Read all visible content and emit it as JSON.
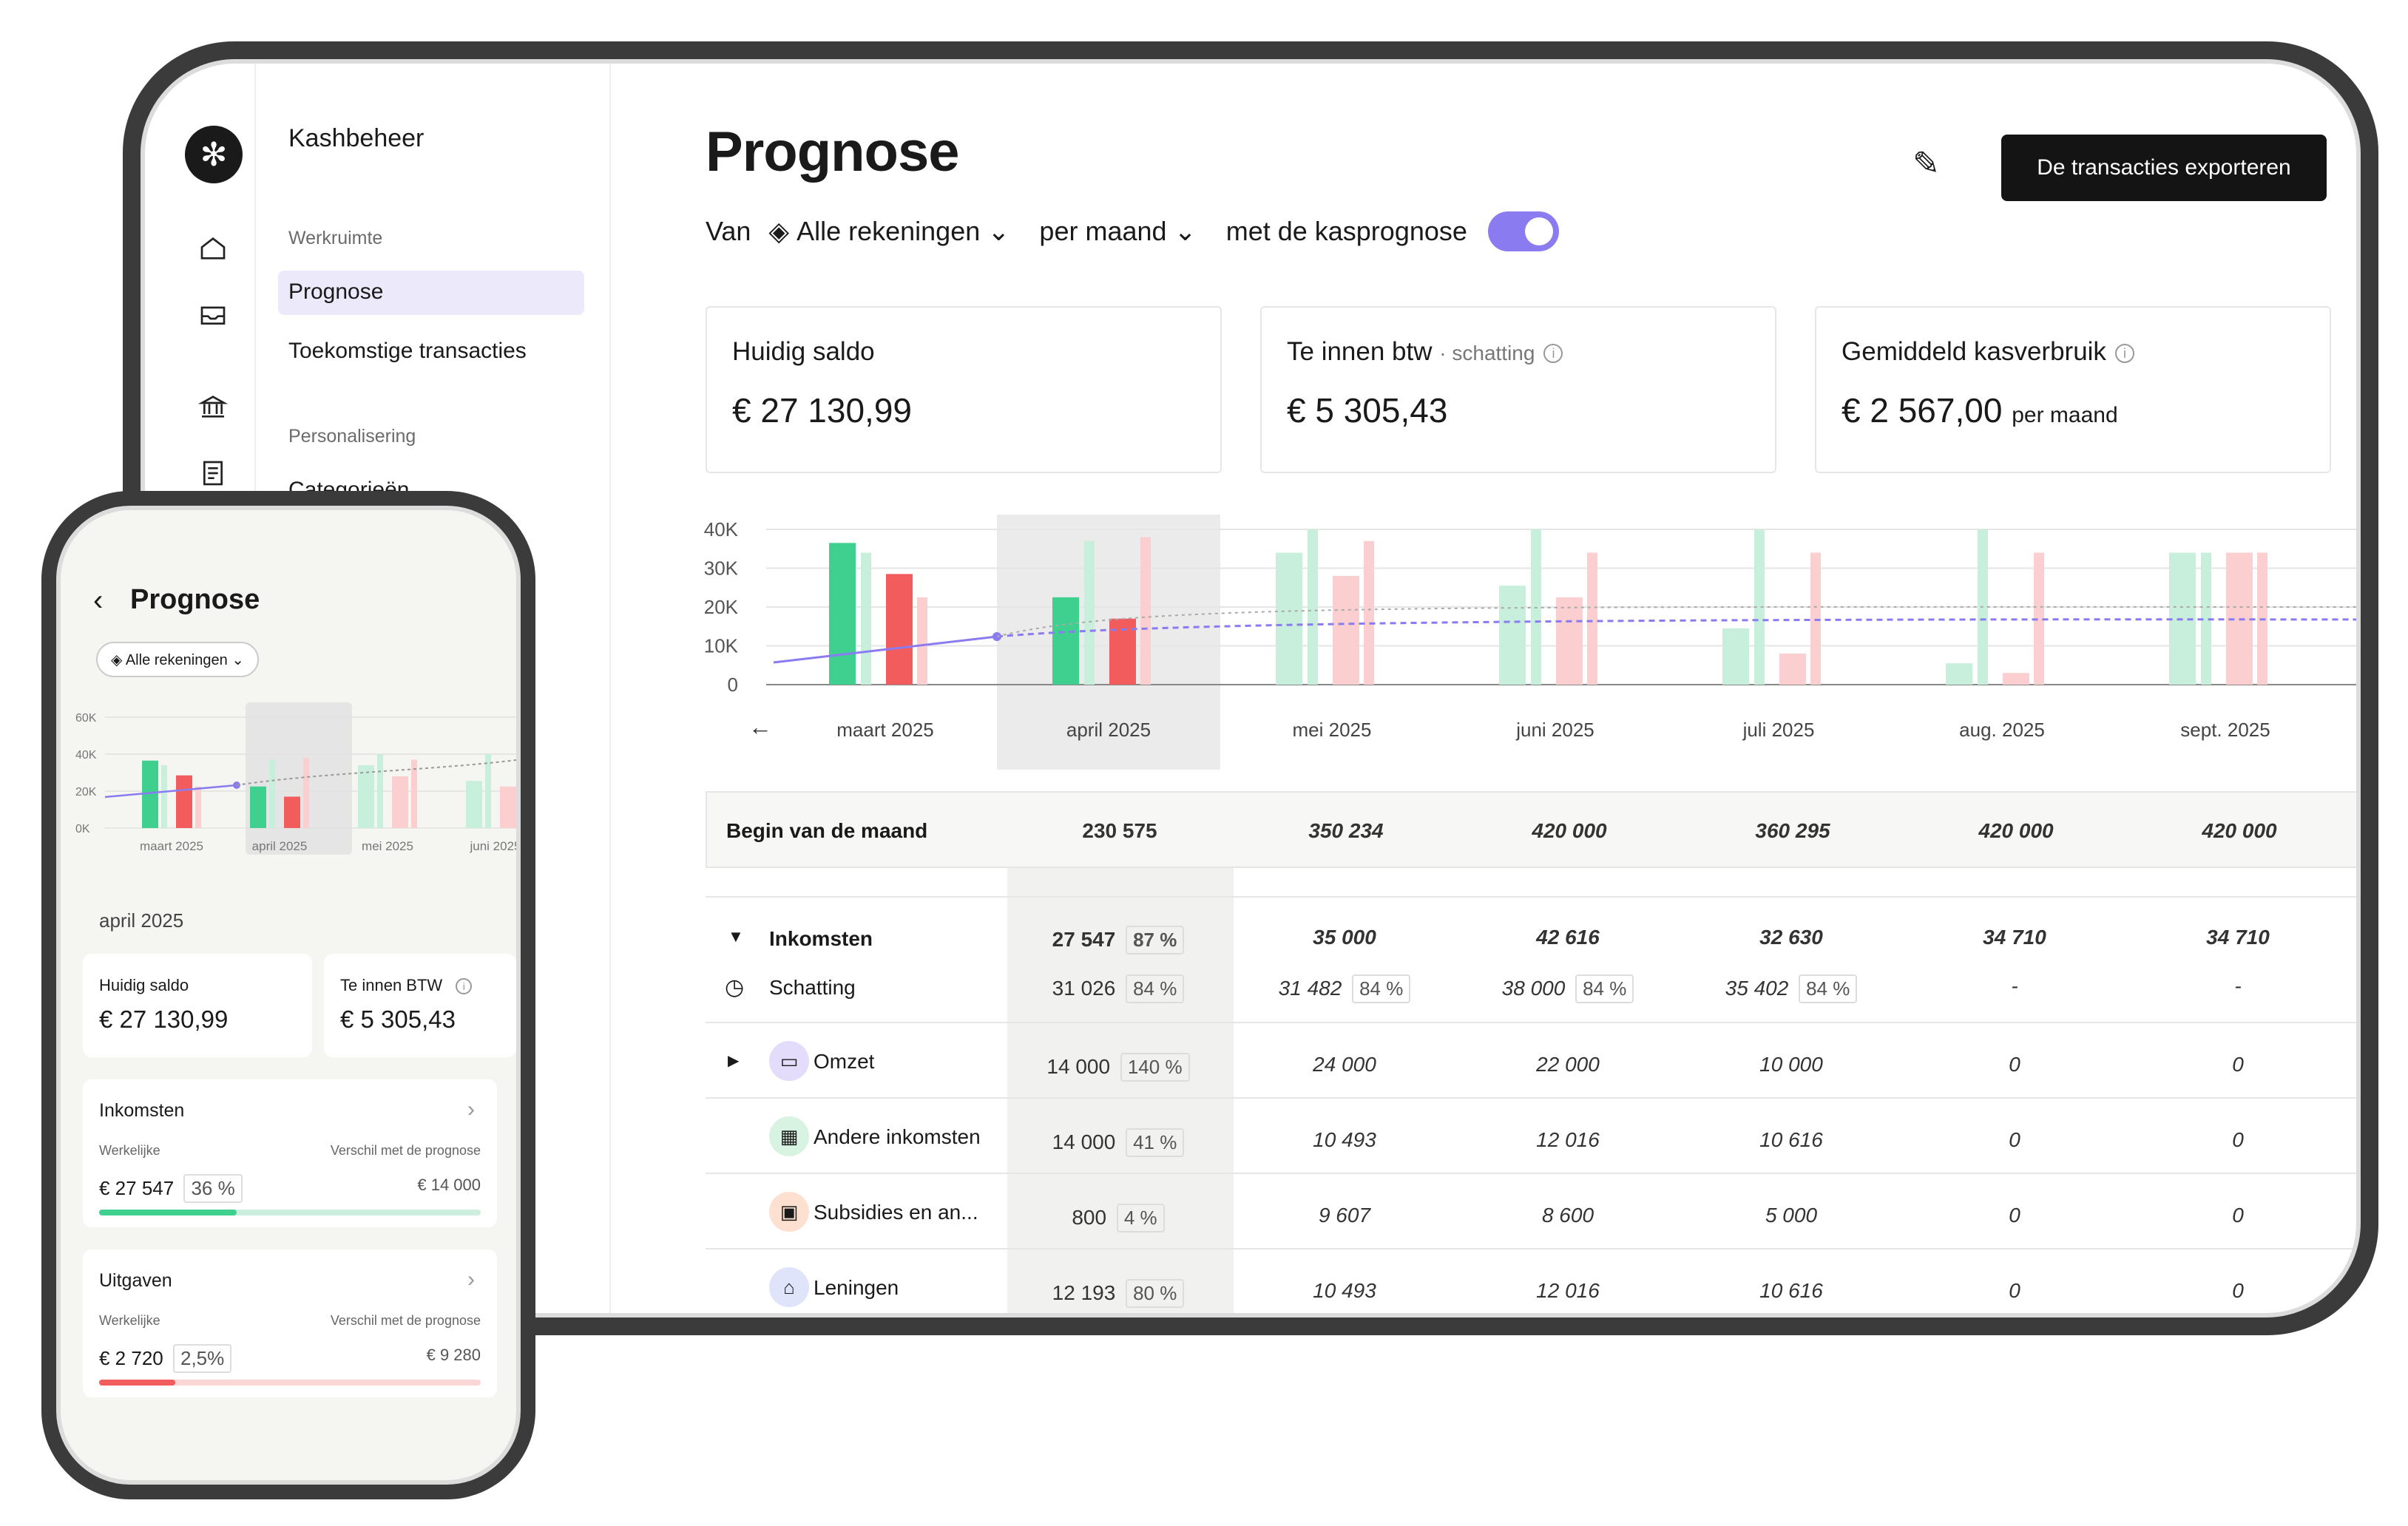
{
  "app": {
    "title": "Kashbeheer"
  },
  "sidebar": {
    "section_workspace": "Werkruimte",
    "items": [
      {
        "label": "Prognose"
      },
      {
        "label": "Toekomstige transacties"
      }
    ],
    "section_personal": "Personalisering",
    "items2": [
      {
        "label": "Categorieën"
      }
    ]
  },
  "header": {
    "title": "Prognose",
    "van": "Van",
    "accounts": "Alle rekeningen",
    "period": "per maand",
    "with_forecast": "met de kasprognose",
    "export": "De transacties exporteren"
  },
  "cards": [
    {
      "label": "Huidig saldo",
      "value": "€ 27 130,99"
    },
    {
      "label": "Te innen btw",
      "suffix": "· schatting",
      "value": "€ 5 305,43"
    },
    {
      "label": "Gemiddeld kasverbruik",
      "value": "€ 2 567,00",
      "unit": "per maand"
    }
  ],
  "chart_data": {
    "type": "bar",
    "categories": [
      "maart 2025",
      "april 2025",
      "mei 2025",
      "juni 2025",
      "juli 2025",
      "aug. 2025",
      "sept. 2025"
    ],
    "yticks": [
      "40K",
      "30K",
      "20K",
      "10K",
      "0"
    ],
    "ylim": [
      0,
      40000
    ],
    "series": [
      {
        "values": [
          36500,
          22500,
          34000,
          25500,
          14500,
          5500,
          34000
        ]
      },
      {
        "values": [
          34000,
          37000,
          40000,
          40000,
          40000,
          40000,
          34000
        ]
      },
      {
        "values": [
          28500,
          17000,
          28000,
          22500,
          8000,
          3000,
          34000
        ]
      },
      {
        "values": [
          22500,
          38000,
          37000,
          34000,
          34000,
          34000,
          34000
        ]
      }
    ],
    "highlight": "april 2025",
    "colors": {
      "income": "#3fcf8e",
      "income_light": "#c8efdc",
      "expense": "#f25c5c",
      "expense_light": "#fbcfcf",
      "line": "#8a7cf0"
    }
  },
  "table": {
    "begin_label": "Begin van de maand",
    "begin": [
      "230 575",
      "350 234",
      "420 000",
      "360 295",
      "420 000",
      "420 000"
    ],
    "income_label": "Inkomsten",
    "income": [
      "27 547",
      "35 000",
      "42 616",
      "32 630",
      "34 710",
      "34 710"
    ],
    "income_pct": "87 %",
    "estimate_label": "Schatting",
    "estimate": [
      "31 026",
      "31 482",
      "38 000",
      "35 402",
      "-",
      "-"
    ],
    "estimate_pct": [
      "84 %",
      "84 %",
      "84 %",
      "84 %"
    ],
    "rows": [
      {
        "label": "Omzet",
        "values": [
          "14 000",
          "24 000",
          "22 000",
          "10 000",
          "0",
          "0"
        ],
        "pct": "140 %",
        "icon": "wallet-icon",
        "color": "#e4dcfb"
      },
      {
        "label": "Andere inkomsten",
        "values": [
          "14 000",
          "10 493",
          "12 016",
          "10 616",
          "0",
          "0"
        ],
        "pct": "41 %",
        "icon": "calculator-icon",
        "color": "#d9f3e3"
      },
      {
        "label": "Subsidies en an...",
        "values": [
          "800",
          "9 607",
          "8 600",
          "5 000",
          "0",
          "0"
        ],
        "pct": "4 %",
        "icon": "grant-icon",
        "color": "#fde0cf"
      },
      {
        "label": "Leningen",
        "values": [
          "12 193",
          "10 493",
          "12 016",
          "10 616",
          "0",
          "0"
        ],
        "pct": "80 %",
        "icon": "bank-icon",
        "color": "#dfe4fb"
      }
    ]
  },
  "phone": {
    "title": "Prognose",
    "accounts": "Alle rekeningen",
    "yticks": [
      "60K",
      "40K",
      "20K",
      "0K"
    ],
    "months": [
      "maart 2025",
      "april 2025",
      "mei 2025",
      "juni 2025"
    ],
    "selected_month": "april 2025",
    "saldo_label": "Huidig saldo",
    "saldo": "€ 27 130,99",
    "btw_label": "Te innen BTW",
    "btw": "€ 5 305,43",
    "income": {
      "title": "Inkomsten",
      "actual_label": "Werkelijke",
      "diff_label": "Verschil met de prognose",
      "actual": "€ 27 547",
      "pct": "36 %",
      "diff": "€ 14 000",
      "progress": 0.36
    },
    "expenses": {
      "title": "Uitgaven",
      "actual_label": "Werkelijke",
      "diff_label": "Verschil met de prognose",
      "actual": "€ 2 720",
      "pct": "2,5%",
      "diff": "€ 9 280",
      "progress": 0.2
    }
  }
}
